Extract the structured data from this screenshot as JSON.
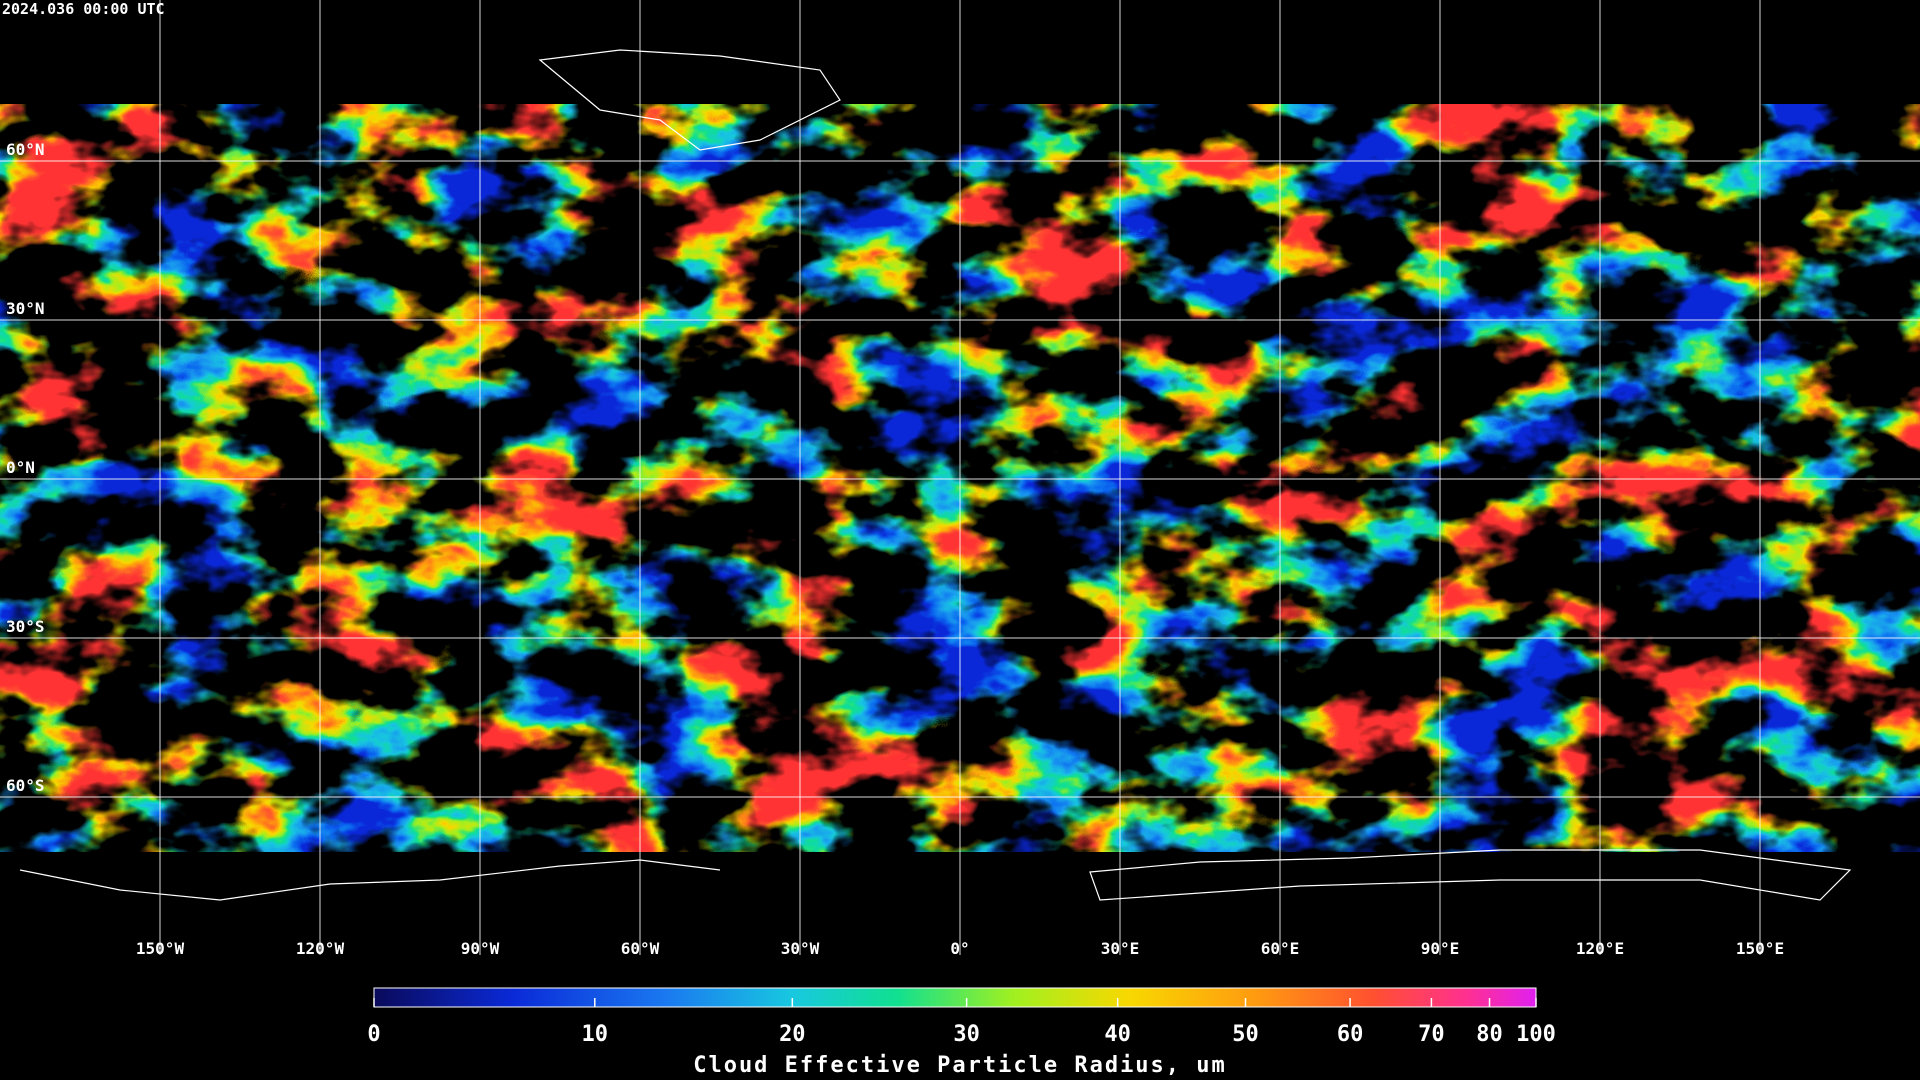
{
  "timestamp": "2024.036 00:00 UTC",
  "map": {
    "lat_labels": [
      {
        "value": 60,
        "label": "60°N"
      },
      {
        "value": 30,
        "label": "30°N"
      },
      {
        "value": 0,
        "label": "0°N"
      },
      {
        "value": -30,
        "label": "30°S"
      },
      {
        "value": -60,
        "label": "60°S"
      }
    ],
    "lon_labels": [
      {
        "value": -150,
        "label": "150°W"
      },
      {
        "value": -120,
        "label": "120°W"
      },
      {
        "value": -90,
        "label": "90°W"
      },
      {
        "value": -60,
        "label": "60°W"
      },
      {
        "value": -30,
        "label": "30°W"
      },
      {
        "value": 0,
        "label": "0°"
      },
      {
        "value": 30,
        "label": "30°E"
      },
      {
        "value": 60,
        "label": "60°E"
      },
      {
        "value": 90,
        "label": "90°E"
      },
      {
        "value": 120,
        "label": "120°E"
      },
      {
        "value": 150,
        "label": "150°E"
      }
    ]
  },
  "colorbar": {
    "title": "Cloud Effective Particle Radius, um",
    "range": [
      0,
      100
    ],
    "ticks": [
      0,
      10,
      20,
      30,
      40,
      50,
      60,
      70,
      80,
      100
    ]
  }
}
